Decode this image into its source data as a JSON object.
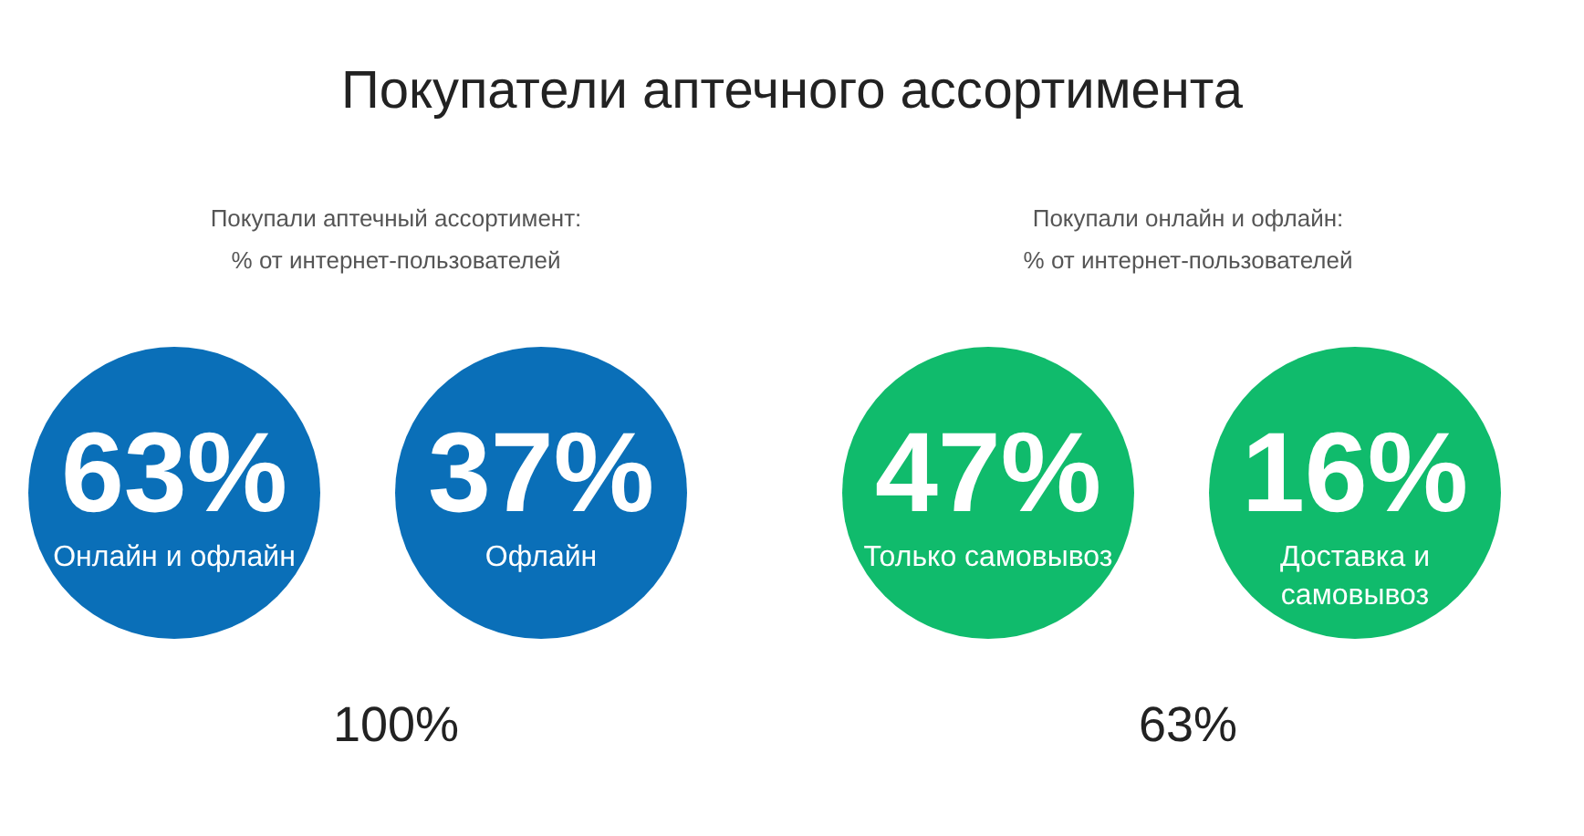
{
  "chart_data": [
    {
      "type": "other",
      "title": "Покупатели аптечного ассортимента",
      "subtitle": "Покупали аптечный ассортимент:\n% от интернет-пользователей",
      "categories": [
        "Онлайн и офлайн",
        "Офлайн"
      ],
      "values": [
        63,
        37
      ],
      "value_labels": [
        "63%",
        "37%"
      ],
      "colors": [
        "#0a6fb8",
        "#0a6fb8"
      ],
      "annotations": [
        "100%"
      ]
    },
    {
      "type": "other",
      "subtitle": "Покупали онлайн и офлайн:\n% от интернет-пользователей",
      "categories": [
        "Только самовывоз",
        "Доставка и самовывоз"
      ],
      "values": [
        47,
        16
      ],
      "value_labels": [
        "47%",
        "16%"
      ],
      "colors": [
        "#10bb6c",
        "#10bb6c"
      ],
      "annotations": [
        "63%"
      ]
    }
  ]
}
